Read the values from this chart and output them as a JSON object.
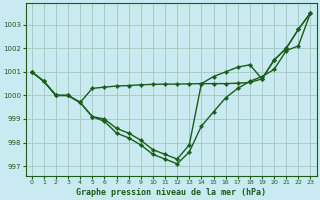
{
  "xlabel": "Graphe pression niveau de la mer (hPa)",
  "background_color": "#c8eaf0",
  "grid_color": "#a0c8b8",
  "line_color": "#1a5e1a",
  "x": [
    0,
    1,
    2,
    3,
    4,
    5,
    6,
    7,
    8,
    9,
    10,
    11,
    12,
    13,
    14,
    15,
    16,
    17,
    18,
    19,
    20,
    21,
    22,
    23
  ],
  "series": [
    [
      1001.0,
      1000.6,
      1000.0,
      1000.0,
      999.7,
      999.1,
      998.9,
      998.4,
      998.2,
      997.9,
      997.5,
      997.3,
      997.1,
      997.6,
      998.7,
      999.3,
      999.9,
      1000.3,
      1000.6,
      1000.8,
      1001.1,
      1001.9,
      1002.1,
      1003.5
    ],
    [
      1001.0,
      1000.6,
      1000.0,
      1000.0,
      999.7,
      999.1,
      999.0,
      998.6,
      998.4,
      998.1,
      997.7,
      997.5,
      997.3,
      997.9,
      1000.5,
      1000.8,
      1001.0,
      1001.2,
      1001.3,
      1000.7,
      1001.5,
      1002.0,
      1002.8,
      1003.5
    ],
    [
      1001.0,
      1000.6,
      1000.0,
      1000.0,
      999.7,
      1000.3,
      1000.35,
      1000.4,
      1000.42,
      1000.45,
      1000.47,
      1000.48,
      1000.48,
      1000.49,
      1000.5,
      1000.5,
      1000.5,
      1000.52,
      1000.55,
      1000.7,
      1001.5,
      1002.0,
      1002.8,
      1003.5
    ]
  ],
  "ylim": [
    996.6,
    1003.9
  ],
  "yticks": [
    997,
    998,
    999,
    1000,
    1001,
    1002,
    1003
  ],
  "xticks": [
    0,
    1,
    2,
    3,
    4,
    5,
    6,
    7,
    8,
    9,
    10,
    11,
    12,
    13,
    14,
    15,
    16,
    17,
    18,
    19,
    20,
    21,
    22,
    23
  ],
  "marker": "D",
  "marker_size": 2.2,
  "line_width": 1.0
}
